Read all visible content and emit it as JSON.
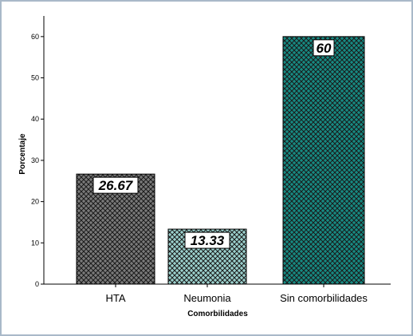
{
  "chart_data": {
    "type": "bar",
    "title": "",
    "xlabel": "Comorbilidades",
    "ylabel": "Porcentaje",
    "categories": [
      "HTA",
      "Neumonia",
      "Sin comorbilidades"
    ],
    "values": [
      26.67,
      13.33,
      60
    ],
    "data_labels": [
      "26.67",
      "13.33",
      "60"
    ],
    "ylim": [
      0,
      65
    ],
    "yticks": [
      0,
      10,
      20,
      30,
      40,
      50,
      60
    ],
    "grid": false,
    "legend": "none",
    "colors": {
      "bars": [
        "#7a7a7a",
        "#9cd1cd",
        "#178a82"
      ],
      "hatch": "#1a1a1a",
      "axis": "#000000",
      "frame_border": "#a9b9c9"
    }
  }
}
